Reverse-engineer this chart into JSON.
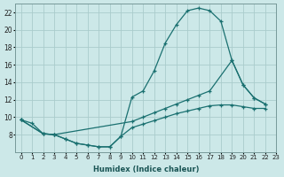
{
  "xlabel": "Humidex (Indice chaleur)",
  "bg_color": "#cce8e8",
  "grid_color": "#aacccc",
  "line_color": "#1a7070",
  "curve1_x": [
    0,
    1,
    2,
    3,
    4,
    5,
    6,
    7,
    8,
    9,
    10,
    11,
    12,
    13,
    14,
    15,
    16,
    17,
    18,
    19,
    20,
    21,
    22
  ],
  "curve1_y": [
    9.7,
    9.3,
    8.1,
    8.0,
    7.5,
    7.0,
    6.8,
    6.6,
    6.6,
    7.8,
    12.3,
    13.0,
    15.3,
    18.5,
    20.6,
    22.2,
    22.5,
    22.2,
    21.0,
    16.5,
    13.7,
    12.2,
    11.5
  ],
  "curve2_x": [
    0,
    2,
    3,
    10,
    11,
    12,
    13,
    14,
    15,
    16,
    17,
    19,
    20,
    21,
    22
  ],
  "curve2_y": [
    9.7,
    8.1,
    8.0,
    9.5,
    10.0,
    10.5,
    11.0,
    11.5,
    12.0,
    12.5,
    13.0,
    16.5,
    13.7,
    12.2,
    11.5
  ],
  "curve3_x": [
    0,
    2,
    3,
    4,
    5,
    6,
    7,
    8,
    9,
    10,
    11,
    12,
    13,
    14,
    15,
    16,
    17,
    18,
    19,
    20,
    21,
    22
  ],
  "curve3_y": [
    9.7,
    8.1,
    8.0,
    7.5,
    7.0,
    6.8,
    6.6,
    6.6,
    7.8,
    8.8,
    9.2,
    9.6,
    10.0,
    10.4,
    10.7,
    11.0,
    11.3,
    11.4,
    11.4,
    11.2,
    11.0,
    11.0
  ],
  "xlim": [
    0,
    23
  ],
  "ylim": [
    6,
    23
  ],
  "yticks": [
    8,
    10,
    12,
    14,
    16,
    18,
    20,
    22
  ],
  "xticks": [
    0,
    1,
    2,
    3,
    4,
    5,
    6,
    7,
    8,
    9,
    10,
    11,
    12,
    13,
    14,
    15,
    16,
    17,
    18,
    19,
    20,
    21,
    22,
    23
  ]
}
